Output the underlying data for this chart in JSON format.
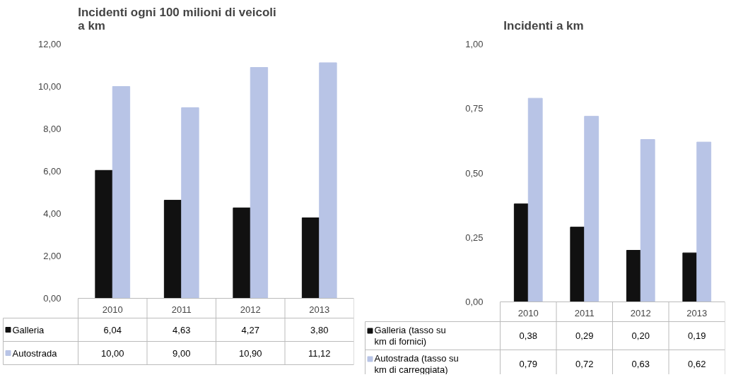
{
  "chart_data": [
    {
      "type": "bar",
      "title": "Incidenti ogni 100 milioni di veicoli a km",
      "categories": [
        "2010",
        "2011",
        "2012",
        "2013"
      ],
      "series": [
        {
          "name": "Galleria",
          "color": "#111111",
          "values": [
            6.04,
            4.63,
            4.27,
            3.8
          ],
          "value_labels": [
            "6,04",
            "4,63",
            "4,27",
            "3,80"
          ]
        },
        {
          "name": "Autostrada",
          "color": "#b8c4e6",
          "values": [
            10.0,
            9.0,
            10.9,
            11.12
          ],
          "value_labels": [
            "10,00",
            "9,00",
            "10,90",
            "11,12"
          ]
        }
      ],
      "ylim": [
        0,
        12
      ],
      "yticks": [
        {
          "value": 0,
          "label": "0,00"
        },
        {
          "value": 2,
          "label": "2,00"
        },
        {
          "value": 4,
          "label": "4,00"
        },
        {
          "value": 6,
          "label": "6,00"
        },
        {
          "value": 8,
          "label": "8,00"
        },
        {
          "value": 10,
          "label": "10,00"
        },
        {
          "value": 12,
          "label": "12,00"
        }
      ],
      "grid": false,
      "legend": "bottom"
    },
    {
      "type": "bar",
      "title": "Incidenti a km",
      "categories": [
        "2010",
        "2011",
        "2012",
        "2013"
      ],
      "series": [
        {
          "name": "Galleria (tasso su km di fornici)",
          "color": "#111111",
          "values": [
            0.38,
            0.29,
            0.2,
            0.19
          ],
          "value_labels": [
            "0,38",
            "0,29",
            "0,20",
            "0,19"
          ]
        },
        {
          "name": "Autostrada (tasso su km di carreggiata)",
          "color": "#b8c4e6",
          "values": [
            0.79,
            0.72,
            0.63,
            0.62
          ],
          "value_labels": [
            "0,79",
            "0,72",
            "0,63",
            "0,62"
          ]
        }
      ],
      "ylim": [
        0,
        1
      ],
      "yticks": [
        {
          "value": 0,
          "label": "0,00"
        },
        {
          "value": 0.25,
          "label": "0,25"
        },
        {
          "value": 0.5,
          "label": "0,50"
        },
        {
          "value": 0.75,
          "label": "0,75"
        },
        {
          "value": 1,
          "label": "1,00"
        }
      ],
      "grid": false,
      "legend": "bottom"
    }
  ]
}
